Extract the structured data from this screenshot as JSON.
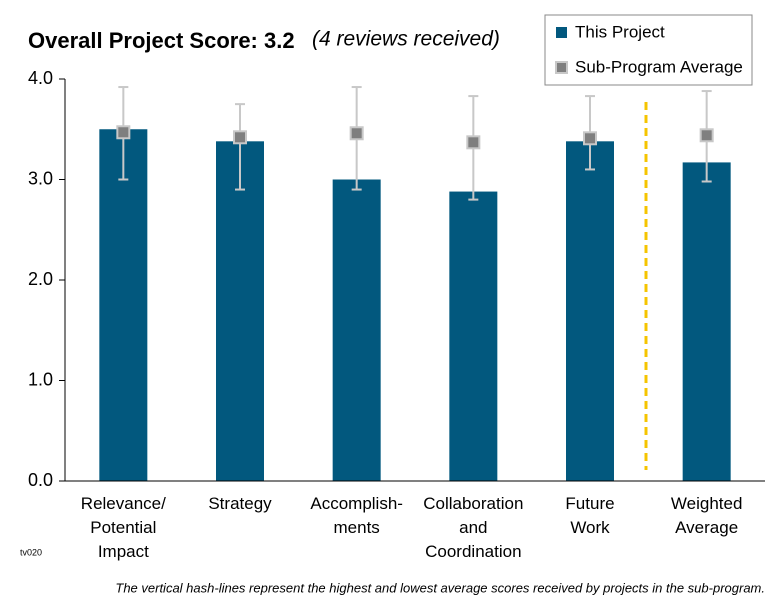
{
  "chart_data": {
    "type": "bar",
    "title": "Overall Project Score: 3.2",
    "subtitle": "(4 reviews received)",
    "categories": [
      "Relevance/\nPotential\nImpact",
      "Strategy",
      "Accomplish-\nments",
      "Collaboration\nand\nCoordination",
      "Future\nWork",
      "Weighted\nAverage"
    ],
    "series": [
      {
        "name": "This Project",
        "color": "#02587e",
        "values": [
          3.5,
          3.38,
          3.0,
          2.88,
          3.38,
          3.17
        ]
      },
      {
        "name": "Sub-Program Average",
        "color": "#7f7f7f",
        "values": [
          3.47,
          3.42,
          3.46,
          3.37,
          3.41,
          3.44
        ]
      }
    ],
    "low": [
      3.0,
      2.9,
      2.9,
      2.8,
      3.1,
      2.98
    ],
    "high": [
      3.92,
      3.75,
      3.92,
      3.83,
      3.83,
      3.88
    ],
    "ylim": [
      0,
      4
    ],
    "yticks": [
      {
        "value": 0,
        "label": "0.0"
      },
      {
        "value": 1,
        "label": "1.0"
      },
      {
        "value": 2,
        "label": "2.0"
      },
      {
        "value": 3,
        "label": "3.0"
      },
      {
        "value": 4,
        "label": "4.0"
      }
    ],
    "code": "tv020",
    "footnote": "The vertical hash-lines represent the highest and lowest average scores received by projects in the sub-program."
  }
}
